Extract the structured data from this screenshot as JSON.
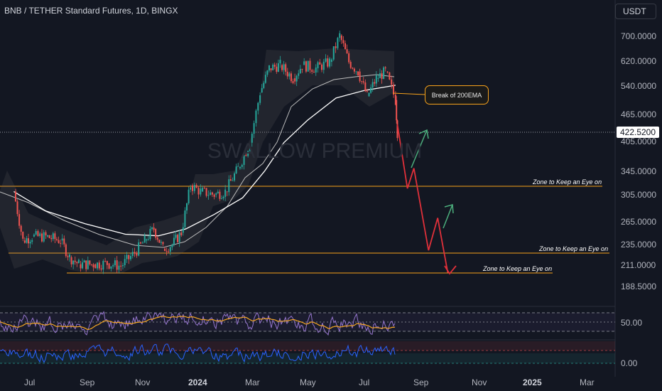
{
  "header": {
    "title": "BNB / TETHER Standard Futures, 1D, BINGX",
    "currency": "USDT"
  },
  "watermark": "SWALLOW PREMIUM",
  "current_price": "422.5200",
  "callout": "Break of 200EMA",
  "zones": [
    {
      "label": "Zone to Keep an Eye on"
    },
    {
      "label": "Zone to Keep an Eye on"
    },
    {
      "label": "Zone to Keep an Eye on"
    }
  ],
  "colors": {
    "background": "#131722",
    "candle_up": "#26a69a",
    "candle_down": "#ef5350",
    "zone_line": "#f7a21b",
    "projection_down": "#e0303a",
    "projection_up": "#4caf7d",
    "ema200": "#ffffff",
    "ema_secondary": "#bdbdbd",
    "rsi_line": "#9575cd",
    "rsi_ma": "#f5a623",
    "lower_osc": "#2962ff"
  },
  "chart_data": {
    "type": "line",
    "title": "BNB / TETHER Standard Futures, 1D, BINGX",
    "ylabel": "USDT",
    "y_scale": "log",
    "ylim": [
      176,
      760
    ],
    "y_ticks": [
      "700.0000",
      "620.0000",
      "540.0000",
      "465.0000",
      "405.0000",
      "345.0000",
      "305.0000",
      "265.0000",
      "235.0000",
      "211.0000",
      "188.5000"
    ],
    "x_ticks": [
      "Jul",
      "Sep",
      "Nov",
      "2024",
      "Mar",
      "May",
      "Jul",
      "Sep",
      "Nov",
      "2025",
      "Mar"
    ],
    "series": [
      {
        "name": "Price",
        "points": [
          [
            "2023-06-15",
            310
          ],
          [
            "2023-06-25",
            240
          ],
          [
            "2023-07-05",
            245
          ],
          [
            "2023-07-20",
            245
          ],
          [
            "2023-08-05",
            240
          ],
          [
            "2023-08-15",
            220
          ],
          [
            "2023-08-25",
            212
          ],
          [
            "2023-09-10",
            212
          ],
          [
            "2023-09-25",
            213
          ],
          [
            "2023-10-10",
            210
          ],
          [
            "2023-10-25",
            225
          ],
          [
            "2023-11-05",
            240
          ],
          [
            "2023-11-15",
            255
          ],
          [
            "2023-11-25",
            230
          ],
          [
            "2023-12-05",
            235
          ],
          [
            "2023-12-15",
            250
          ],
          [
            "2023-12-25",
            320
          ],
          [
            "2024-01-05",
            310
          ],
          [
            "2024-01-20",
            305
          ],
          [
            "2024-02-01",
            310
          ],
          [
            "2024-02-15",
            350
          ],
          [
            "2024-02-28",
            400
          ],
          [
            "2024-03-10",
            520
          ],
          [
            "2024-03-20",
            590
          ],
          [
            "2024-04-01",
            600
          ],
          [
            "2024-04-15",
            560
          ],
          [
            "2024-04-25",
            600
          ],
          [
            "2024-05-10",
            590
          ],
          [
            "2024-05-25",
            610
          ],
          [
            "2024-06-05",
            700
          ],
          [
            "2024-06-15",
            610
          ],
          [
            "2024-06-25",
            580
          ],
          [
            "2024-07-05",
            510
          ],
          [
            "2024-07-15",
            560
          ],
          [
            "2024-07-25",
            580
          ],
          [
            "2024-08-05",
            500
          ],
          [
            "2024-08-07",
            422.52
          ]
        ]
      },
      {
        "name": "EMA 200",
        "points": [
          [
            "2023-06-15",
            310
          ],
          [
            "2023-07-20",
            280
          ],
          [
            "2023-09-01",
            262
          ],
          [
            "2023-10-15",
            248
          ],
          [
            "2023-11-20",
            246
          ],
          [
            "2023-12-20",
            255
          ],
          [
            "2024-01-20",
            275
          ],
          [
            "2024-02-20",
            300
          ],
          [
            "2024-03-15",
            345
          ],
          [
            "2024-04-05",
            400
          ],
          [
            "2024-05-01",
            450
          ],
          [
            "2024-06-01",
            505
          ],
          [
            "2024-07-01",
            525
          ],
          [
            "2024-08-05",
            540
          ]
        ]
      },
      {
        "name": "Projection",
        "points": [
          [
            "2024-08-07",
            440
          ],
          [
            "2024-08-18",
            315
          ],
          [
            "2024-08-25",
            350
          ],
          [
            "2024-09-10",
            228
          ],
          [
            "2024-09-20",
            270
          ],
          [
            "2024-10-01",
            203
          ]
        ]
      }
    ],
    "zones": [
      {
        "value": 318,
        "label": "Zone to Keep an Eye on"
      },
      {
        "value": 228,
        "label": "Zone to Keep an Eye on"
      },
      {
        "value": 203,
        "label": "Zone to Keep an Eye on"
      }
    ],
    "rsi": {
      "level_label": "50.00"
    },
    "oscillator": {
      "level_label": "0.00"
    }
  }
}
